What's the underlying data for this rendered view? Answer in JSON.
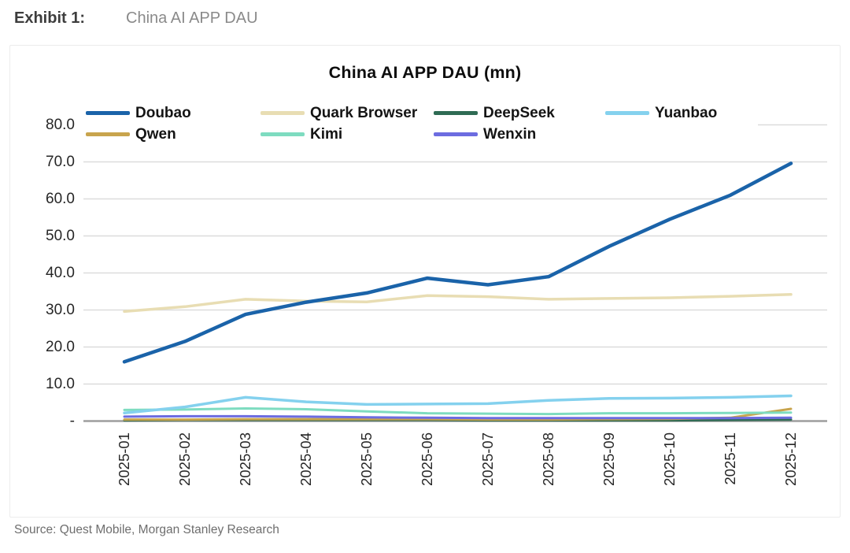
{
  "exhibit": {
    "label": "Exhibit 1:",
    "title": "China AI APP DAU"
  },
  "source": "Source: Quest Mobile, Morgan Stanley Research",
  "chart_data": {
    "type": "line",
    "title": "China AI APP DAU (mn)",
    "xlabel": "",
    "ylabel": "",
    "x_categories": [
      "2025-01",
      "2025-02",
      "2025-03",
      "2025-04",
      "2025-05",
      "2025-06",
      "2025-07",
      "2025-08",
      "2025-09",
      "2025-10",
      "2025-11",
      "2025-12"
    ],
    "series": [
      {
        "name": "Doubao",
        "color": "#1a63a9",
        "line_width": 4.5,
        "z": 7,
        "values": [
          16.0,
          21.5,
          28.8,
          32.1,
          34.6,
          38.6,
          36.8,
          39.0,
          47.2,
          54.5,
          61.0,
          69.6
        ]
      },
      {
        "name": "Quark Browser",
        "color": "#e8ddb3",
        "line_width": 3.5,
        "z": 6,
        "values": [
          29.6,
          30.9,
          32.9,
          32.4,
          32.2,
          33.9,
          33.6,
          32.9,
          33.1,
          33.3,
          33.7,
          34.2
        ]
      },
      {
        "name": "DeepSeek",
        "color": "#2f6b54",
        "line_width": 3.0,
        "z": 1,
        "values": [
          0.2,
          0.3,
          0.3,
          0.3,
          0.3,
          0.3,
          0.2,
          0.2,
          0.2,
          0.2,
          0.3,
          0.4
        ]
      },
      {
        "name": "Yuanbao",
        "color": "#84d1ee",
        "line_width": 3.5,
        "z": 5,
        "values": [
          2.2,
          3.8,
          6.4,
          5.2,
          4.5,
          4.6,
          4.7,
          5.6,
          6.1,
          6.2,
          6.4,
          6.8
        ]
      },
      {
        "name": "Qwen",
        "color": "#c8a44d",
        "line_width": 3.0,
        "z": 2,
        "values": [
          0.4,
          0.4,
          0.5,
          0.5,
          0.5,
          0.5,
          0.4,
          0.4,
          0.5,
          0.6,
          0.9,
          3.3
        ]
      },
      {
        "name": "Kimi",
        "color": "#7edcc0",
        "line_width": 3.0,
        "z": 4,
        "values": [
          3.0,
          3.1,
          3.4,
          3.2,
          2.6,
          2.1,
          2.0,
          1.9,
          2.1,
          2.1,
          2.2,
          2.3
        ]
      },
      {
        "name": "Wenxin",
        "color": "#6c6ce0",
        "line_width": 3.0,
        "z": 3,
        "values": [
          1.2,
          1.3,
          1.3,
          1.2,
          1.0,
          0.9,
          0.8,
          0.8,
          0.8,
          0.8,
          0.8,
          0.9
        ]
      }
    ],
    "legend_rows": [
      [
        0,
        1,
        2,
        3
      ],
      [
        4,
        5,
        6
      ]
    ],
    "legend_position": "top",
    "grid": true,
    "grid_color": "#dcdcdc",
    "axis_color": "#9e9e9e",
    "ylim": [
      0,
      80
    ],
    "yticks": [
      {
        "value": 80,
        "label": "80.0"
      },
      {
        "value": 70,
        "label": "70.0"
      },
      {
        "value": 60,
        "label": "60.0"
      },
      {
        "value": 50,
        "label": "50.0"
      },
      {
        "value": 40,
        "label": "40.0"
      },
      {
        "value": 30,
        "label": "30.0"
      },
      {
        "value": 20,
        "label": "20.0"
      },
      {
        "value": 10,
        "label": "10.0"
      },
      {
        "value": 0,
        "label": "-"
      }
    ]
  }
}
